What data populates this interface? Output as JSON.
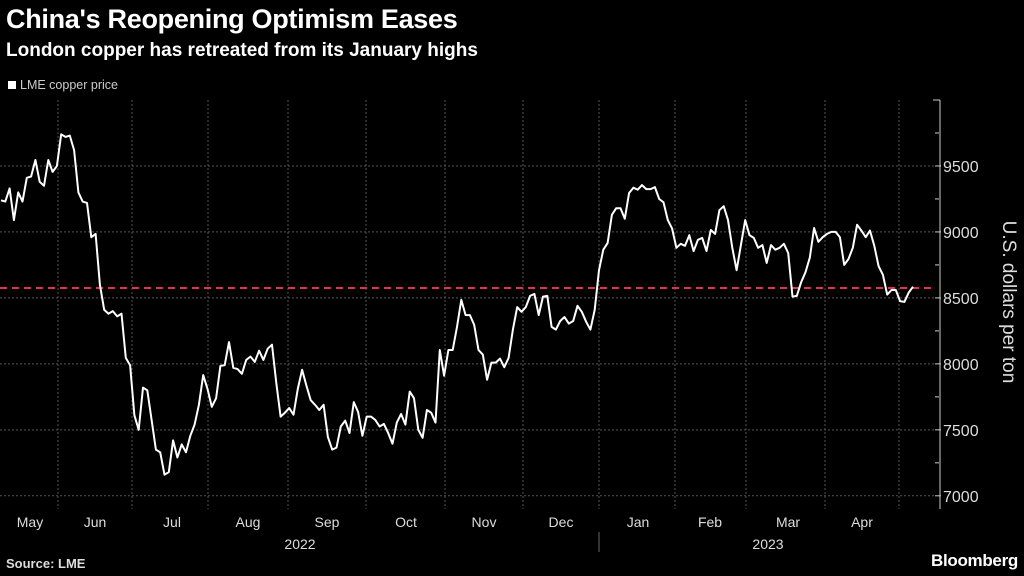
{
  "header": {
    "title": "China's Reopening Optimism Eases",
    "subtitle": "London copper has retreated from its January highs"
  },
  "footer": {
    "source": "Source: LME",
    "brand": "Bloomberg"
  },
  "colors": {
    "background": "#000000",
    "line": "#ffffff",
    "reference": "#e0334f",
    "grid": "#555555"
  },
  "chart_data": {
    "type": "line",
    "title": "China's Reopening Optimism Eases",
    "subtitle": "London copper has retreated from its January highs",
    "legend": [
      "LME copper price"
    ],
    "legend_position": "top-left",
    "xlabel": "",
    "ylabel": "U.S. dollars per ton",
    "ylim": [
      6900,
      10000
    ],
    "y_ticks": [
      7000,
      7500,
      8000,
      8500,
      9000,
      9500
    ],
    "y_tick_labels": [
      "7000",
      "7500",
      "8000",
      "8500",
      "9000",
      "9500"
    ],
    "x_tick_labels": [
      "May",
      "Jun",
      "Jul",
      "Aug",
      "Sep",
      "Oct",
      "Nov",
      "Dec",
      "Jan",
      "Feb",
      "Mar",
      "Apr"
    ],
    "x_year_labels": [
      "2022",
      "2023"
    ],
    "x_range": [
      "2022-05",
      "2023-04"
    ],
    "grid": true,
    "reference_line": {
      "value": 8575,
      "style": "dashed"
    },
    "series": [
      {
        "name": "LME copper price",
        "values": [
          9240,
          9230,
          9330,
          9090,
          9300,
          9230,
          9410,
          9420,
          9545,
          9380,
          9350,
          9545,
          9455,
          9500,
          9740,
          9720,
          9730,
          9620,
          9300,
          9230,
          9220,
          8960,
          8985,
          8600,
          8410,
          8380,
          8400,
          8360,
          8380,
          8045,
          7990,
          7610,
          7500,
          7820,
          7800,
          7575,
          7350,
          7330,
          7160,
          7180,
          7420,
          7290,
          7390,
          7330,
          7455,
          7540,
          7690,
          7915,
          7810,
          7675,
          7740,
          7985,
          7990,
          8165,
          7970,
          7960,
          7925,
          8030,
          8055,
          8015,
          8100,
          8030,
          8115,
          8145,
          7855,
          7600,
          7630,
          7665,
          7615,
          7810,
          7955,
          7835,
          7725,
          7690,
          7650,
          7690,
          7445,
          7350,
          7365,
          7525,
          7570,
          7475,
          7710,
          7635,
          7455,
          7600,
          7600,
          7575,
          7525,
          7545,
          7475,
          7395,
          7555,
          7620,
          7540,
          7790,
          7740,
          7500,
          7440,
          7650,
          7630,
          7555,
          8105,
          7910,
          8105,
          8105,
          8280,
          8485,
          8370,
          8370,
          8295,
          8105,
          8070,
          7880,
          8010,
          8010,
          8040,
          7975,
          8045,
          8260,
          8430,
          8395,
          8430,
          8515,
          8530,
          8370,
          8510,
          8515,
          8280,
          8260,
          8325,
          8355,
          8305,
          8325,
          8440,
          8395,
          8320,
          8260,
          8410,
          8710,
          8865,
          8915,
          9130,
          9180,
          9180,
          9100,
          9295,
          9335,
          9320,
          9355,
          9325,
          9325,
          9340,
          9250,
          9225,
          9090,
          9025,
          8880,
          8910,
          8895,
          8975,
          8855,
          8940,
          8955,
          8855,
          9015,
          8985,
          9165,
          9195,
          9090,
          8880,
          8710,
          8900,
          9090,
          8975,
          8955,
          8880,
          8900,
          8765,
          8900,
          8865,
          8880,
          8910,
          8840,
          8510,
          8515,
          8620,
          8695,
          8805,
          9030,
          8925,
          8960,
          8985,
          9000,
          9000,
          8960,
          8750,
          8795,
          8880,
          9055,
          9010,
          8960,
          9010,
          8895,
          8740,
          8675,
          8525,
          8560,
          8560,
          8475,
          8470,
          8540,
          8585
        ]
      }
    ]
  }
}
